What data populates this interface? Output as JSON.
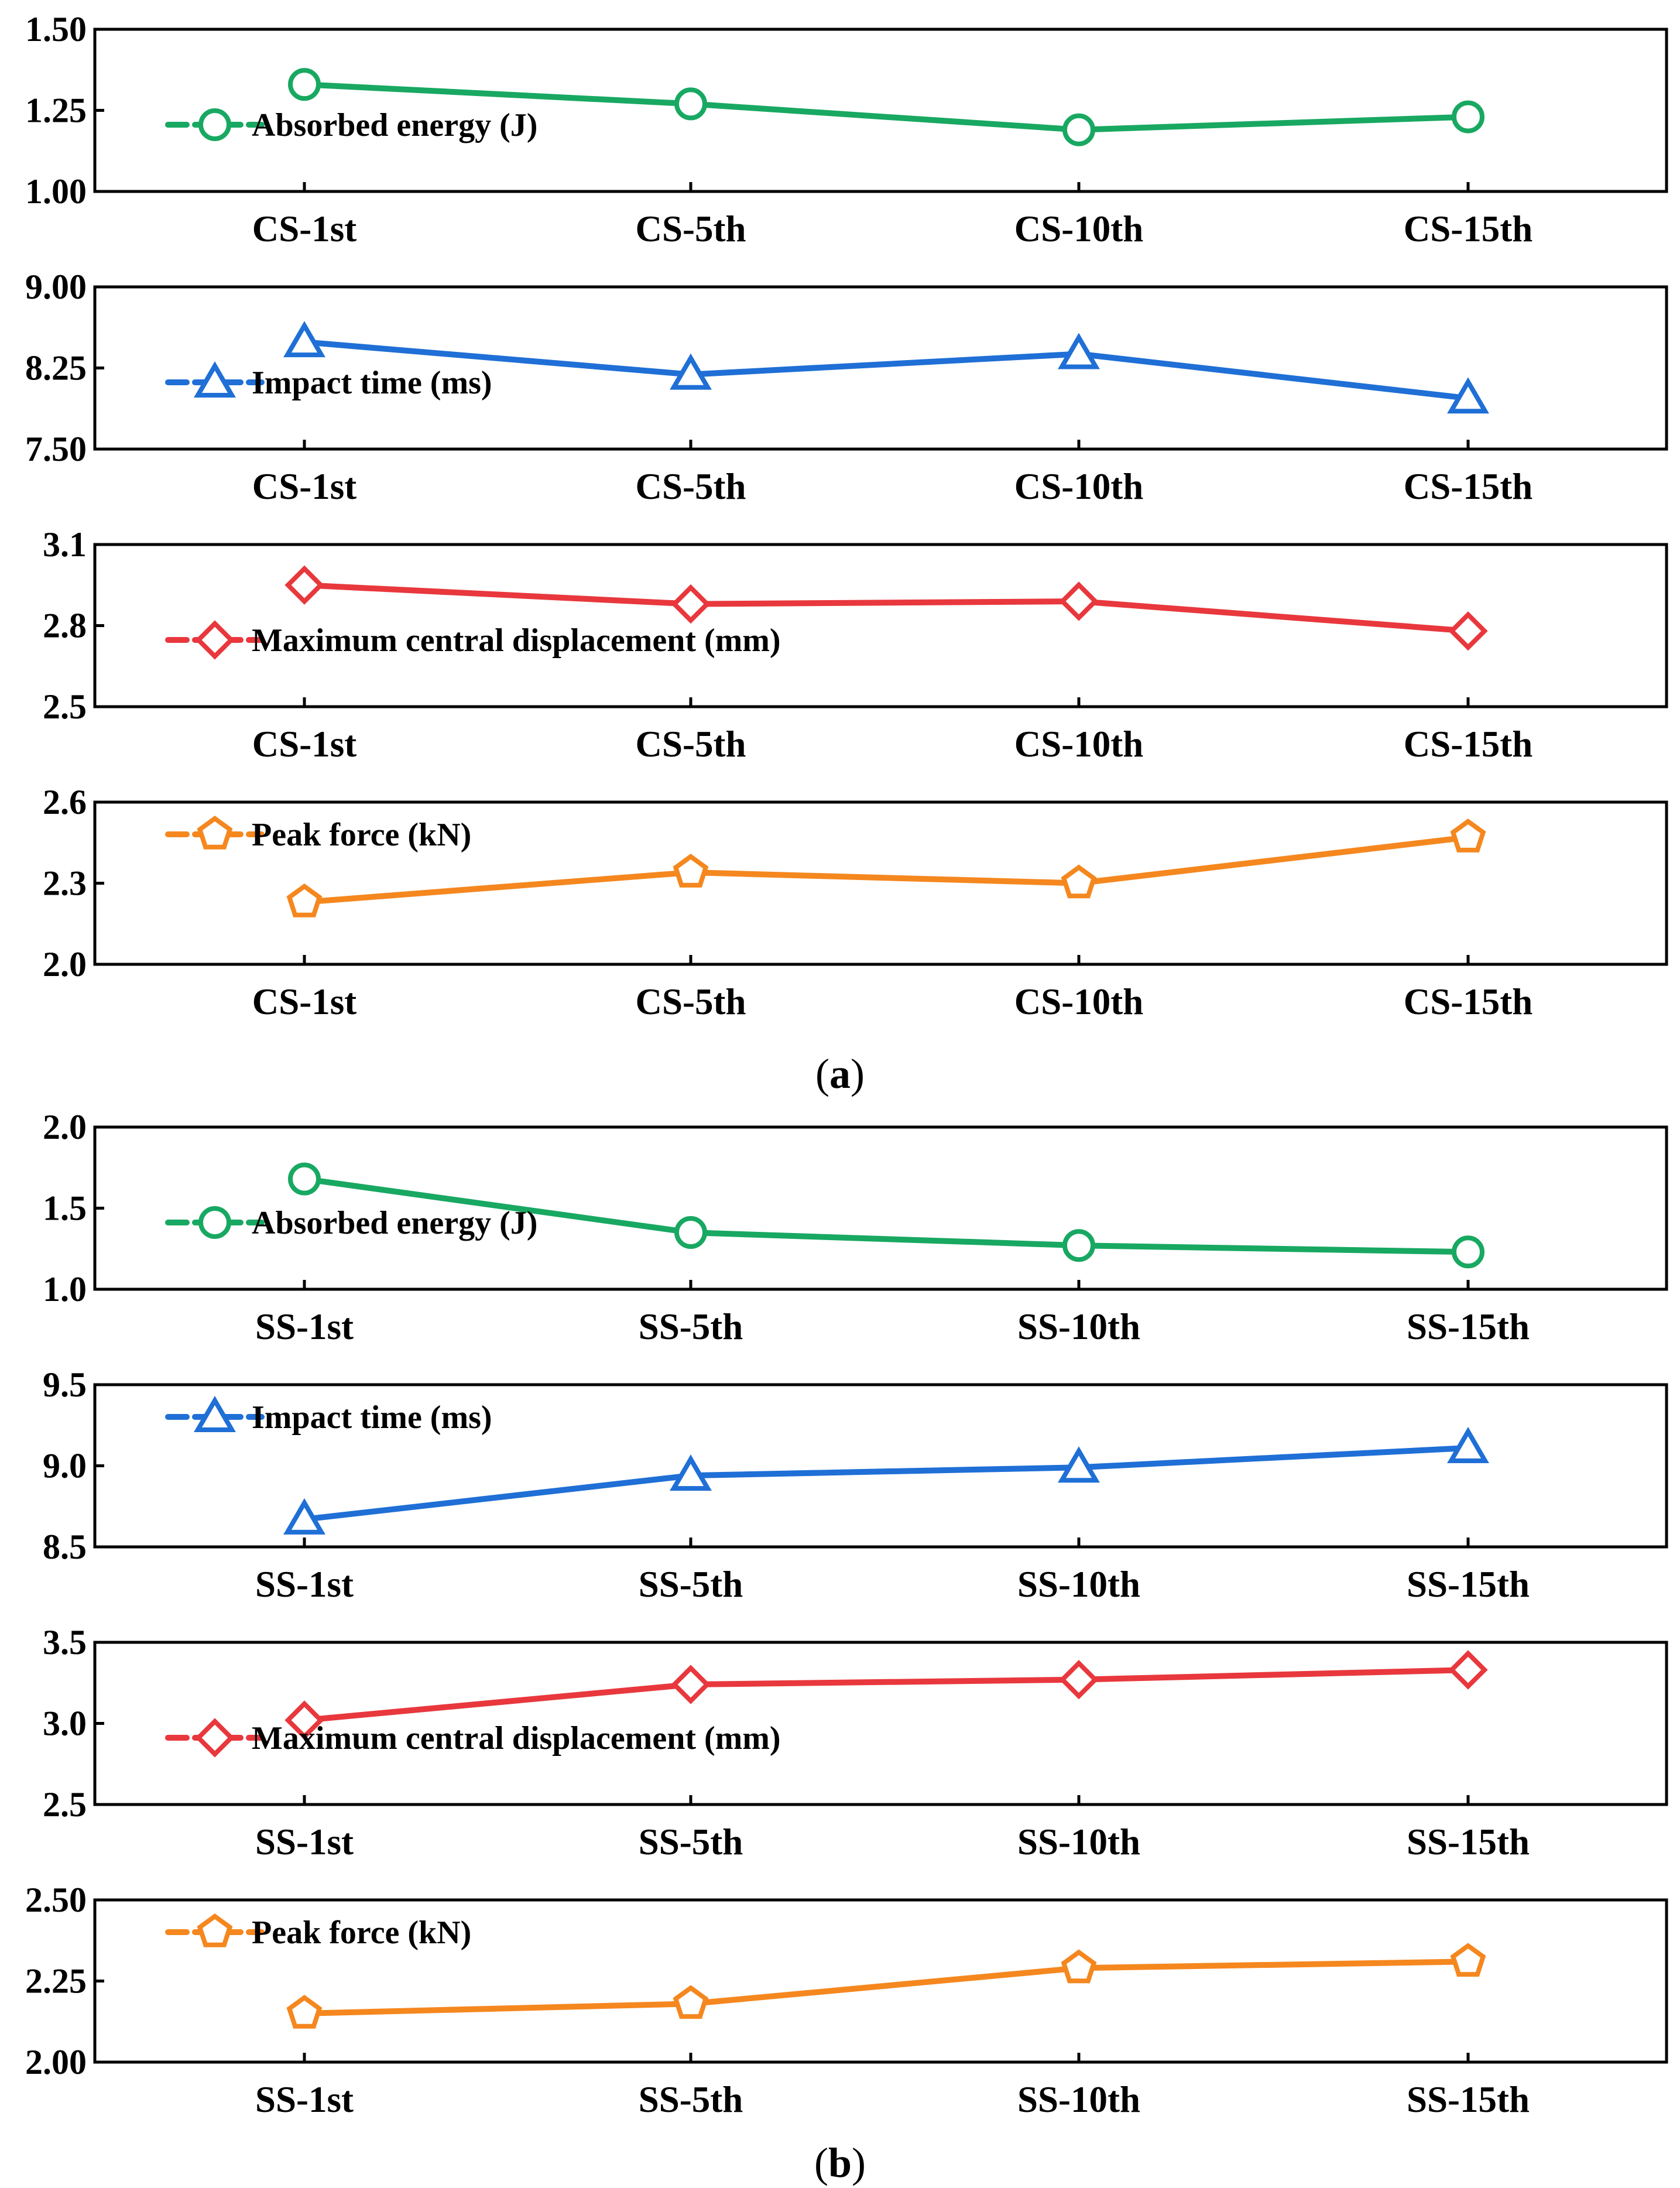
{
  "chart_data": [
    {
      "type": "line",
      "group": "a",
      "categories": [
        "CS-1st",
        "CS-5th",
        "CS-10th",
        "CS-15th"
      ],
      "series": [
        {
          "name": "Absorbed energy (J)",
          "values": [
            1.33,
            1.27,
            1.19,
            1.23
          ]
        }
      ],
      "ylim": [
        1.0,
        1.5
      ],
      "yticks": [
        "1.00",
        "1.25",
        "1.50"
      ],
      "marker": "circle",
      "color": "#18a862",
      "legend_position": "center-left"
    },
    {
      "type": "line",
      "group": "a",
      "categories": [
        "CS-1st",
        "CS-5th",
        "CS-10th",
        "CS-15th"
      ],
      "series": [
        {
          "name": "Impact time (ms)",
          "values": [
            8.49,
            8.19,
            8.38,
            7.97
          ]
        }
      ],
      "ylim": [
        7.5,
        9.0
      ],
      "yticks": [
        "7.50",
        "8.25",
        "9.00"
      ],
      "marker": "triangle",
      "color": "#1f6fd6",
      "legend_position": "center-left"
    },
    {
      "type": "line",
      "group": "a",
      "categories": [
        "CS-1st",
        "CS-5th",
        "CS-10th",
        "CS-15th"
      ],
      "series": [
        {
          "name": "Maximum central displacement (mm)",
          "values": [
            2.95,
            2.88,
            2.89,
            2.78
          ]
        }
      ],
      "ylim": [
        2.5,
        3.1
      ],
      "yticks": [
        "2.5",
        "2.8",
        "3.1"
      ],
      "marker": "diamond",
      "color": "#e8383d",
      "legend_position": "center-left"
    },
    {
      "type": "line",
      "group": "a",
      "categories": [
        "CS-1st",
        "CS-5th",
        "CS-10th",
        "CS-15th"
      ],
      "series": [
        {
          "name": "Peak force (kN)",
          "values": [
            2.23,
            2.34,
            2.3,
            2.47
          ]
        }
      ],
      "ylim": [
        2.0,
        2.6
      ],
      "yticks": [
        "2.0",
        "2.3",
        "2.6"
      ],
      "marker": "pentagon",
      "color": "#f5871f",
      "legend_position": "top-left"
    },
    {
      "type": "line",
      "group": "b",
      "categories": [
        "SS-1st",
        "SS-5th",
        "SS-10th",
        "SS-15th"
      ],
      "series": [
        {
          "name": "Absorbed energy (J)",
          "values": [
            1.68,
            1.35,
            1.27,
            1.23
          ]
        }
      ],
      "ylim": [
        1.0,
        2.0
      ],
      "yticks": [
        "1.0",
        "1.5",
        "2.0"
      ],
      "marker": "circle",
      "color": "#18a862",
      "legend_position": "center-left"
    },
    {
      "type": "line",
      "group": "b",
      "categories": [
        "SS-1st",
        "SS-5th",
        "SS-10th",
        "SS-15th"
      ],
      "series": [
        {
          "name": "Impact time (ms)",
          "values": [
            8.67,
            8.94,
            8.99,
            9.11
          ]
        }
      ],
      "ylim": [
        8.5,
        9.5
      ],
      "yticks": [
        "8.5",
        "9.0",
        "9.5"
      ],
      "marker": "triangle",
      "color": "#1f6fd6",
      "legend_position": "top-left"
    },
    {
      "type": "line",
      "group": "b",
      "categories": [
        "SS-1st",
        "SS-5th",
        "SS-10th",
        "SS-15th"
      ],
      "series": [
        {
          "name": "Maximum central displacement (mm)",
          "values": [
            3.02,
            3.24,
            3.27,
            3.33
          ]
        }
      ],
      "ylim": [
        2.5,
        3.5
      ],
      "yticks": [
        "2.5",
        "3.0",
        "3.5"
      ],
      "marker": "diamond",
      "color": "#e8383d",
      "legend_position": "center-left"
    },
    {
      "type": "line",
      "group": "b",
      "categories": [
        "SS-1st",
        "SS-5th",
        "SS-10th",
        "SS-15th"
      ],
      "series": [
        {
          "name": "Peak force (kN)",
          "values": [
            2.15,
            2.18,
            2.29,
            2.31
          ]
        }
      ],
      "ylim": [
        2.0,
        2.5
      ],
      "yticks": [
        "2.00",
        "2.25",
        "2.50"
      ],
      "marker": "pentagon",
      "color": "#f5871f",
      "legend_position": "top-left"
    }
  ],
  "captions": {
    "a": {
      "open": "(",
      "letter": "a",
      "close": ")"
    },
    "b": {
      "open": "(",
      "letter": "b",
      "close": ")"
    }
  }
}
